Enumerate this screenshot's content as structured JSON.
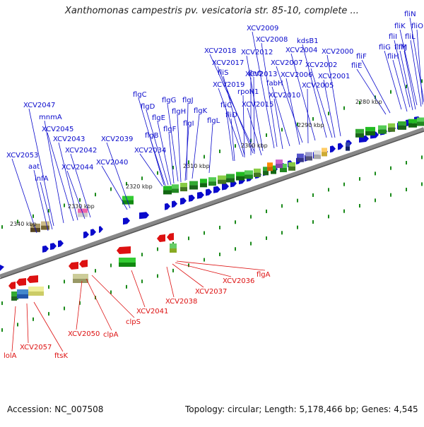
{
  "title": "Xanthomonas campestris pv. vesicatoria str. 85-10, complete ...",
  "footer": {
    "accession": "Accession: NC_007508",
    "summary": "Topology: circular; Length: 5,178,466 bp; Genes: 4,545"
  },
  "colors": {
    "forward": "#0a0acc",
    "reverse": "#dd1111",
    "backbone": "#888888",
    "cog_tick": "#1a8a1a"
  },
  "ticks": [
    {
      "label": "2280 kbp"
    },
    {
      "label": "2290 kbp"
    },
    {
      "label": "2300 kbp"
    },
    {
      "label": "2310 kbp"
    },
    {
      "label": "2320 kbp"
    },
    {
      "label": "2330 kbp"
    },
    {
      "label": "2340 kbp"
    }
  ],
  "forward_labels": [
    {
      "text": "fliN"
    },
    {
      "text": "fliK"
    },
    {
      "text": "fliO"
    },
    {
      "text": "fliI"
    },
    {
      "text": "fliL"
    },
    {
      "text": "fliG"
    },
    {
      "text": "fliJ"
    },
    {
      "text": "fliM"
    },
    {
      "text": "fliF"
    },
    {
      "text": "fliH"
    },
    {
      "text": "fliE"
    },
    {
      "text": "XCV2009"
    },
    {
      "text": "XCV2008"
    },
    {
      "text": "kdsB1"
    },
    {
      "text": "XCV2004"
    },
    {
      "text": "XCV2000"
    },
    {
      "text": "XCV2018"
    },
    {
      "text": "XCV2012"
    },
    {
      "text": "XCV2017"
    },
    {
      "text": "XCV2007"
    },
    {
      "text": "XCV2002"
    },
    {
      "text": "fliS"
    },
    {
      "text": "fleQ"
    },
    {
      "text": "fabH"
    },
    {
      "text": "XCV2013"
    },
    {
      "text": "XCV2006"
    },
    {
      "text": "XCV2001"
    },
    {
      "text": "XCV2019"
    },
    {
      "text": "XCV2005"
    },
    {
      "text": "rpoN1"
    },
    {
      "text": "XCV2010"
    },
    {
      "text": "flgC"
    },
    {
      "text": "flgG"
    },
    {
      "text": "flgJ"
    },
    {
      "text": "fliC"
    },
    {
      "text": "XCV2015"
    },
    {
      "text": "flgD"
    },
    {
      "text": "flgH"
    },
    {
      "text": "flgK"
    },
    {
      "text": "fliD"
    },
    {
      "text": "flgE"
    },
    {
      "text": "flgL"
    },
    {
      "text": "XCV2047"
    },
    {
      "text": "flgI"
    },
    {
      "text": "flgF"
    },
    {
      "text": "mnmA"
    },
    {
      "text": "XCV2045"
    },
    {
      "text": "flgB"
    },
    {
      "text": "XCV2043"
    },
    {
      "text": "XCV2039"
    },
    {
      "text": "XCV2042"
    },
    {
      "text": "XCV2034"
    },
    {
      "text": "XCV2053"
    },
    {
      "text": "XCV2040"
    },
    {
      "text": "aat"
    },
    {
      "text": "XCV2044"
    },
    {
      "text": "infA"
    }
  ],
  "reverse_labels": [
    {
      "text": "flgA"
    },
    {
      "text": "XCV2036"
    },
    {
      "text": "XCV2037"
    },
    {
      "text": "XCV2038"
    },
    {
      "text": "XCV2041"
    },
    {
      "text": "clpS"
    },
    {
      "text": "XCV2050"
    },
    {
      "text": "clpA"
    },
    {
      "text": "XCV2057"
    },
    {
      "text": "lolA"
    },
    {
      "text": "ftsK"
    }
  ]
}
